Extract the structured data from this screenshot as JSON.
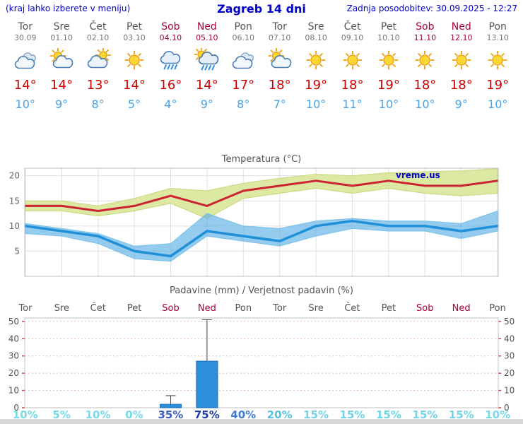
{
  "header": {
    "left_note": "(kraj lahko izberete v meniju)",
    "title": "Zagreb 14 dni",
    "updated": "Zadnja posodobitev: 30.09.2025 - 12:27"
  },
  "watermark": "vreme.us",
  "colors": {
    "header_blue": "#0000cc",
    "weekday": "#555555",
    "date_gray": "#777777",
    "weekend": "#aa0033",
    "temp_high": "#cc0000",
    "temp_low": "#46a3e8",
    "grid_gray": "#e0e0e0",
    "plot_border": "#c0c0c0",
    "precip_grid_pink": "#e4bcbc",
    "axis_tick_red": "#cc4444",
    "bar_blue": "#2b8fdd",
    "bar_edge": "#1a6cb8"
  },
  "days": [
    {
      "name": "Tor",
      "date": "30.09",
      "weekend": false,
      "icon": "cloudy",
      "high": "14°",
      "low": "10°",
      "prob": "10%",
      "prob_color": "#78dae8"
    },
    {
      "name": "Sre",
      "date": "01.10",
      "weekend": false,
      "icon": "partly-cloudy",
      "high": "14°",
      "low": "9°",
      "prob": "5%",
      "prob_color": "#78dae8"
    },
    {
      "name": "Čet",
      "date": "02.10",
      "weekend": false,
      "icon": "mostly-cloudy",
      "high": "13°",
      "low": "8°",
      "prob": "10%",
      "prob_color": "#78dae8"
    },
    {
      "name": "Pet",
      "date": "03.10",
      "weekend": false,
      "icon": "sunny",
      "high": "14°",
      "low": "5°",
      "prob": "0%",
      "prob_color": "#78dae8"
    },
    {
      "name": "Sob",
      "date": "04.10",
      "weekend": true,
      "icon": "rain",
      "high": "16°",
      "low": "4°",
      "prob": "35%",
      "prob_color": "#3b5ec2"
    },
    {
      "name": "Ned",
      "date": "05.10",
      "weekend": true,
      "icon": "rain-sun",
      "high": "14°",
      "low": "9°",
      "prob": "75%",
      "prob_color": "#1e3da8"
    },
    {
      "name": "Pon",
      "date": "06.10",
      "weekend": false,
      "icon": "cloudy",
      "high": "17°",
      "low": "8°",
      "prob": "40%",
      "prob_color": "#3f7cd0"
    },
    {
      "name": "Tor",
      "date": "07.10",
      "weekend": false,
      "icon": "partly-cloudy",
      "high": "18°",
      "low": "7°",
      "prob": "20%",
      "prob_color": "#54c2de"
    },
    {
      "name": "Sre",
      "date": "08.10",
      "weekend": false,
      "icon": "sunny",
      "high": "19°",
      "low": "10°",
      "prob": "15%",
      "prob_color": "#6fd4e6"
    },
    {
      "name": "Čet",
      "date": "09.10",
      "weekend": false,
      "icon": "sunny",
      "high": "18°",
      "low": "11°",
      "prob": "15%",
      "prob_color": "#6fd4e6"
    },
    {
      "name": "Pet",
      "date": "10.10",
      "weekend": false,
      "icon": "sunny",
      "high": "19°",
      "low": "10°",
      "prob": "15%",
      "prob_color": "#6fd4e6"
    },
    {
      "name": "Sob",
      "date": "11.10",
      "weekend": true,
      "icon": "sunny",
      "high": "18°",
      "low": "10°",
      "prob": "15%",
      "prob_color": "#6fd4e6"
    },
    {
      "name": "Ned",
      "date": "12.10",
      "weekend": true,
      "icon": "sunny",
      "high": "18°",
      "low": "9°",
      "prob": "15%",
      "prob_color": "#6fd4e6"
    },
    {
      "name": "Pon",
      "date": "13.10",
      "weekend": false,
      "icon": "sunny",
      "high": "19°",
      "low": "10°",
      "prob": "10%",
      "prob_color": "#78dae8"
    }
  ],
  "chart_data": [
    {
      "type": "line",
      "title": "Temperatura (°C)",
      "x_labels": [
        "Tor",
        "Sre",
        "Čet",
        "Pet",
        "Sob",
        "Ned",
        "Pon",
        "Tor",
        "Sre",
        "Čet",
        "Pet",
        "Sob",
        "Ned",
        "Pon"
      ],
      "ylim": [
        0,
        21.5
      ],
      "yticks": [
        5,
        10,
        15,
        20
      ],
      "grid": true,
      "legend": "none",
      "series": [
        {
          "key": "max-temp-line",
          "color": "#cc2233",
          "width": 3,
          "values": [
            14,
            14,
            13,
            14,
            16,
            14,
            17,
            18,
            19,
            18,
            19,
            18,
            18,
            19
          ]
        },
        {
          "key": "min-temp-line",
          "color": "#2090d8",
          "width": 3.5,
          "values": [
            10,
            9,
            8,
            5,
            4,
            9,
            8,
            7,
            10,
            11,
            10,
            10,
            9,
            10
          ]
        }
      ],
      "bands": [
        {
          "key": "max-temp-band",
          "fill": "#dde9a2",
          "stroke": "#c6d77e",
          "upper": [
            15,
            15,
            14,
            15.5,
            17.5,
            17,
            18.5,
            19.5,
            20.3,
            20,
            20.6,
            20.8,
            21,
            21.4
          ],
          "lower": [
            13,
            13,
            12,
            13,
            14.5,
            11.5,
            15.5,
            16.5,
            17.5,
            16.5,
            17.5,
            16.5,
            16,
            16.5
          ]
        },
        {
          "key": "min-temp-band",
          "fill": "rgba(90,175,230,0.65)",
          "stroke": "#79c2e8",
          "upper": [
            10.5,
            9.5,
            8.5,
            6,
            6.5,
            12.5,
            10,
            9.5,
            11,
            11.5,
            11,
            11,
            10.5,
            13
          ],
          "lower": [
            8.5,
            8,
            6.5,
            3.5,
            3,
            8,
            7,
            6,
            8,
            9.5,
            9,
            9,
            7.5,
            9
          ]
        }
      ]
    },
    {
      "type": "bar",
      "title": "Padavine (mm) / Verjetnost padavin (%)",
      "categories": [
        "Tor",
        "Sre",
        "Čet",
        "Pet",
        "Sob",
        "Ned",
        "Pon",
        "Tor",
        "Sre",
        "Čet",
        "Pet",
        "Sob",
        "Ned",
        "Pon"
      ],
      "values_mm": [
        0,
        0,
        0,
        0,
        2,
        27,
        0,
        0,
        0,
        0,
        0,
        0,
        0,
        0
      ],
      "whiskers_mm": [
        0,
        0,
        0,
        0,
        7,
        51,
        0,
        0,
        0,
        0,
        0,
        0,
        0,
        0
      ],
      "probabilities": [
        "10%",
        "5%",
        "10%",
        "0%",
        "35%",
        "75%",
        "40%",
        "20%",
        "15%",
        "15%",
        "15%",
        "15%",
        "15%",
        "10%"
      ],
      "ylim": [
        0,
        52
      ],
      "yticks": [
        0,
        10,
        20,
        30,
        40,
        50
      ],
      "bar_color": "#2b8fdd"
    }
  ]
}
